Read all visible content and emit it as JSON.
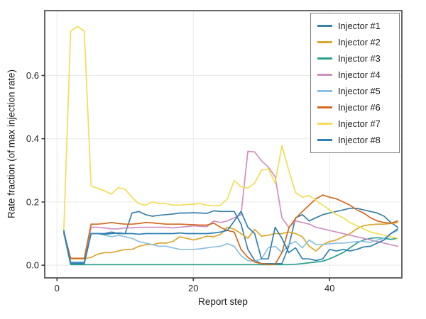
{
  "figure": {
    "background": "#ffffff",
    "spine_color": "#565656",
    "grid_color": "#e9e9e9",
    "tick_color": "#3c3c3c",
    "tick_label_color": "#262626"
  },
  "chart_data": {
    "type": "line",
    "title": "",
    "xlabel": "Report step",
    "ylabel": "Rate fraction (of max injection rate)",
    "x": [
      1,
      2,
      3,
      4,
      5,
      6,
      7,
      8,
      9,
      10,
      11,
      12,
      13,
      14,
      15,
      16,
      17,
      18,
      19,
      20,
      21,
      22,
      23,
      24,
      25,
      26,
      27,
      28,
      29,
      30,
      31,
      32,
      33,
      34,
      35,
      36,
      37,
      38,
      39,
      40,
      41,
      42,
      43,
      44,
      45,
      46,
      47,
      48,
      49,
      50
    ],
    "xlim": [
      -1.8,
      50.6
    ],
    "ylim": [
      -0.04,
      0.805
    ],
    "xticks": [
      0,
      20,
      40
    ],
    "xtick_labels": [
      "0",
      "20",
      "40"
    ],
    "yticks": [
      0,
      0.2,
      0.4,
      0.6
    ],
    "ytick_labels": [
      "0.0",
      "0.2",
      "0.4",
      "0.6"
    ],
    "grid": true,
    "legend_position": "upper right",
    "series": [
      {
        "name": "Injector #1",
        "color": "#3a80a8",
        "values": [
          0.105,
          0.005,
          0.005,
          0.005,
          0.1,
          0.1,
          0.1,
          0.105,
          0.1,
          0.1,
          0.165,
          0.17,
          0.16,
          0.155,
          0.158,
          0.16,
          0.162,
          0.165,
          0.165,
          0.166,
          0.165,
          0.164,
          0.172,
          0.17,
          0.17,
          0.17,
          0.13,
          0.05,
          0.015,
          0.005,
          0.005,
          0.005,
          0.005,
          0.06,
          0.15,
          0.16,
          0.14,
          0.15,
          0.16,
          0.165,
          0.17,
          0.175,
          0.18,
          0.18,
          0.175,
          0.17,
          0.165,
          0.155,
          0.135,
          0.12
        ]
      },
      {
        "name": "Injector #2",
        "color": "#dda62c",
        "values": [
          0.1,
          0.02,
          0.02,
          0.02,
          0.025,
          0.035,
          0.04,
          0.04,
          0.045,
          0.05,
          0.05,
          0.06,
          0.065,
          0.065,
          0.07,
          0.07,
          0.075,
          0.09,
          0.085,
          0.08,
          0.085,
          0.092,
          0.09,
          0.098,
          0.12,
          0.114,
          0.1,
          0.085,
          0.113,
          0.092,
          0.095,
          0.1,
          0.1,
          0.105,
          0.1,
          0.09,
          0.06,
          0.045,
          0.065,
          0.075,
          0.08,
          0.09,
          0.1,
          0.115,
          0.125,
          0.128,
          0.13,
          0.13,
          0.132,
          0.135
        ]
      },
      {
        "name": "Injector #3",
        "color": "#2aa08a",
        "values": [
          0.1,
          0.002,
          0.002,
          0.002,
          0.002,
          0.002,
          0.002,
          0.002,
          0.002,
          0.002,
          0.002,
          0.002,
          0.002,
          0.002,
          0.002,
          0.002,
          0.002,
          0.002,
          0.002,
          0.002,
          0.002,
          0.002,
          0.002,
          0.002,
          0.002,
          0.002,
          0.002,
          0.002,
          0.002,
          0.002,
          0.002,
          0.002,
          0.002,
          0.002,
          0.003,
          0.005,
          0.008,
          0.01,
          0.013,
          0.02,
          0.03,
          0.04,
          0.055,
          0.07,
          0.08,
          0.085,
          0.087,
          0.085,
          0.082,
          0.085
        ]
      },
      {
        "name": "Injector #4",
        "color": "#d08fc0",
        "values": [
          0.105,
          0.01,
          0.01,
          0.01,
          0.12,
          0.12,
          0.118,
          0.115,
          0.115,
          0.118,
          0.118,
          0.12,
          0.12,
          0.12,
          0.12,
          0.12,
          0.118,
          0.12,
          0.122,
          0.125,
          0.123,
          0.122,
          0.14,
          0.135,
          0.14,
          0.15,
          0.16,
          0.36,
          0.358,
          0.33,
          0.31,
          0.28,
          0.15,
          0.12,
          0.14,
          0.135,
          0.13,
          0.12,
          0.115,
          0.11,
          0.105,
          0.1,
          0.095,
          0.09,
          0.085,
          0.08,
          0.075,
          0.07,
          0.065,
          0.06
        ]
      },
      {
        "name": "Injector #5",
        "color": "#8cc1e0",
        "values": [
          0.105,
          0.01,
          0.01,
          0.01,
          0.1,
          0.1,
          0.095,
          0.09,
          0.095,
          0.09,
          0.085,
          0.075,
          0.07,
          0.065,
          0.06,
          0.06,
          0.055,
          0.05,
          0.05,
          0.05,
          0.052,
          0.055,
          0.058,
          0.06,
          0.068,
          0.06,
          0.03,
          0.015,
          0.012,
          0.02,
          0.055,
          0.06,
          0.04,
          0.065,
          0.075,
          0.055,
          0.08,
          0.065,
          0.065,
          0.068,
          0.07,
          0.07,
          0.072,
          0.075,
          0.075,
          0.072,
          0.08,
          0.085,
          0.1,
          0.11
        ]
      },
      {
        "name": "Injector #6",
        "color": "#d2691f",
        "values": [
          0.105,
          0.022,
          0.022,
          0.022,
          0.13,
          0.13,
          0.132,
          0.135,
          0.132,
          0.13,
          0.13,
          0.132,
          0.135,
          0.134,
          0.132,
          0.13,
          0.13,
          0.13,
          0.129,
          0.128,
          0.127,
          0.127,
          0.133,
          0.12,
          0.11,
          0.105,
          0.05,
          0.025,
          0.01,
          0.005,
          0.003,
          0.003,
          0.04,
          0.117,
          0.148,
          0.17,
          0.19,
          0.21,
          0.222,
          0.215,
          0.21,
          0.2,
          0.19,
          0.175,
          0.165,
          0.15,
          0.14,
          0.135,
          0.133,
          0.14
        ]
      },
      {
        "name": "Injector #7",
        "color": "#f2de56",
        "values": [
          0.114,
          0.74,
          0.755,
          0.74,
          0.25,
          0.243,
          0.235,
          0.225,
          0.245,
          0.24,
          0.215,
          0.195,
          0.19,
          0.2,
          0.195,
          0.195,
          0.19,
          0.19,
          0.192,
          0.193,
          0.195,
          0.19,
          0.188,
          0.19,
          0.21,
          0.268,
          0.248,
          0.244,
          0.26,
          0.3,
          0.305,
          0.26,
          0.378,
          0.3,
          0.23,
          0.215,
          0.22,
          0.205,
          0.19,
          0.175,
          0.16,
          0.15,
          0.135,
          0.125,
          0.115,
          0.105,
          0.1,
          0.095,
          0.09,
          0.085
        ]
      },
      {
        "name": "Injector #8",
        "color": "#2e7fb2",
        "values": [
          0.11,
          0.007,
          0.007,
          0.007,
          0.1,
          0.1,
          0.098,
          0.1,
          0.102,
          0.1,
          0.1,
          0.098,
          0.1,
          0.1,
          0.1,
          0.1,
          0.1,
          0.102,
          0.1,
          0.1,
          0.1,
          0.1,
          0.102,
          0.105,
          0.11,
          0.14,
          0.17,
          0.12,
          0.1,
          0.02,
          0.02,
          0.12,
          0.085,
          0.04,
          0.055,
          0.02,
          0.02,
          0.015,
          0.02,
          0.05,
          0.045,
          0.05,
          0.045,
          0.05,
          0.058,
          0.06,
          0.07,
          0.08,
          0.1,
          0.115
        ]
      }
    ]
  }
}
